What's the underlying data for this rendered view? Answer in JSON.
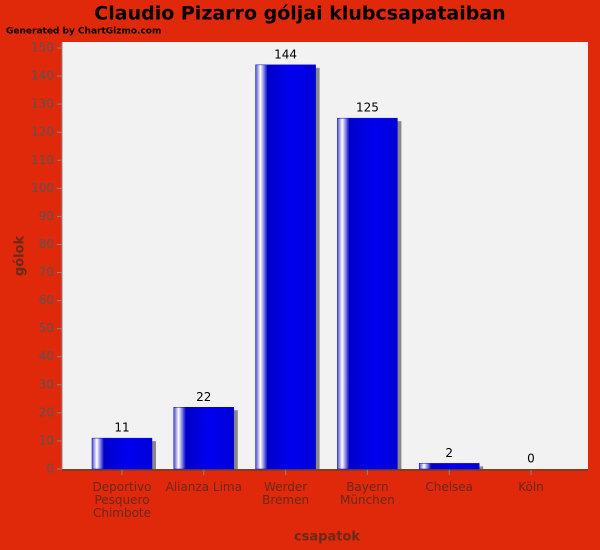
{
  "generator": "Generated by ChartGizmo.com",
  "chart_data": {
    "type": "bar",
    "title": "Claudio Pizarro góljai klubcsapataiban",
    "x_label": "csapatok",
    "y_label": "gólok",
    "categories": [
      "Deportivo Pesquero Chimbote",
      "Alianza Lima",
      "Werder Bremen",
      "Bayern München",
      "Chelsea",
      "Köln"
    ],
    "values": [
      11,
      22,
      144,
      125,
      2,
      0
    ],
    "color": "#0000e0",
    "ylim": [
      0,
      150
    ],
    "yticks": [
      0,
      10,
      20,
      30,
      40,
      50,
      60,
      70,
      80,
      90,
      100,
      110,
      120,
      130,
      140,
      150
    ],
    "grid": false
  }
}
